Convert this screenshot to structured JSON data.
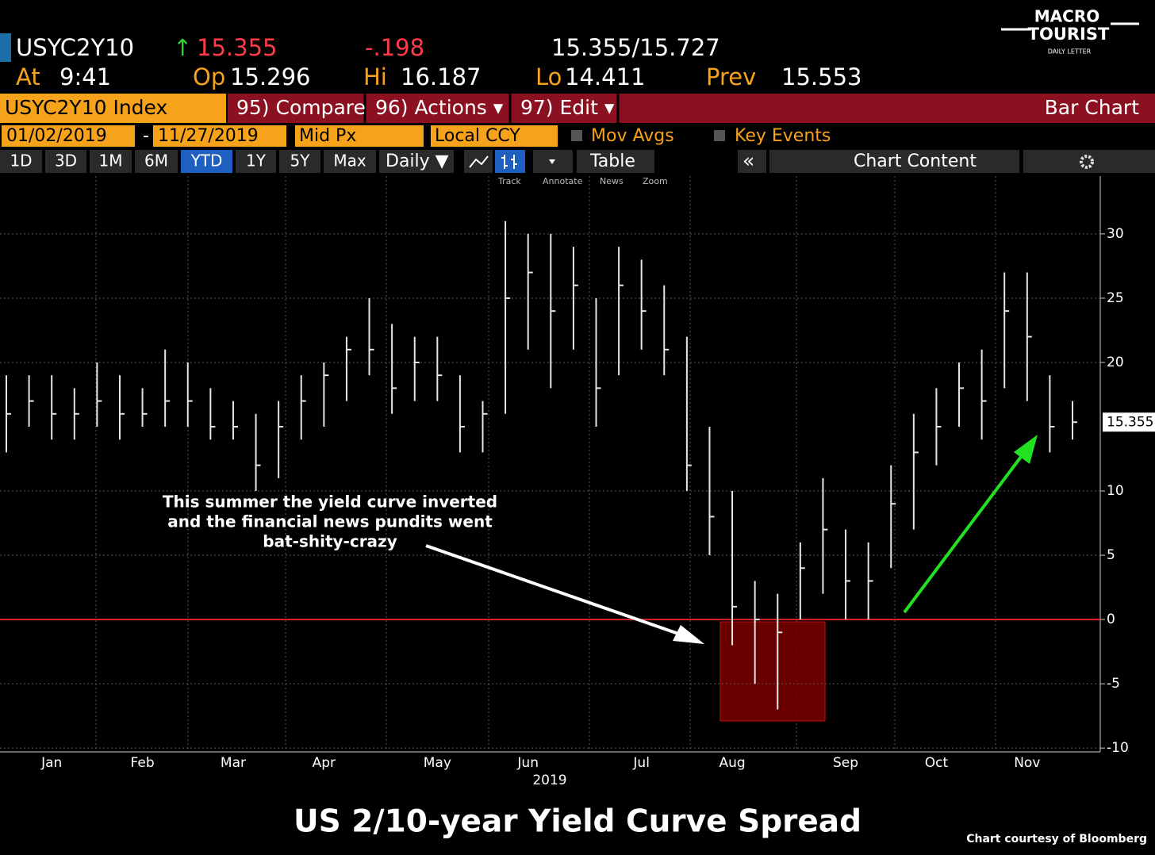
{
  "header": {
    "ticker": "USYC2Y10",
    "arrow": "↑",
    "last": "15.355",
    "change": "-.198",
    "bid_ask": "15.355/15.727",
    "at_label": "At",
    "time": "9:41",
    "open_label": "Op",
    "open": "15.296",
    "high_label": "Hi",
    "high": "16.187",
    "low_label": "Lo",
    "low": "14.411",
    "prev_label": "Prev",
    "prev": "15.553"
  },
  "logo": {
    "line1": "MACRO",
    "line2": "TOURIST",
    "line3": "DAILY LETTER"
  },
  "toolbar": {
    "security": "USYC2Y10 Index",
    "compare": "95) Compare",
    "actions": "96) Actions ▾",
    "edit": "97) Edit ▾",
    "view": "Bar Chart",
    "start": "01/02/2019",
    "dash": "-",
    "end": "11/27/2019",
    "price_field": "Mid Px",
    "currency": "Local CCY",
    "mov_avgs": "Mov Avgs",
    "key_events": "Key Events",
    "periods": [
      "1D",
      "3D",
      "1M",
      "6M",
      "YTD",
      "1Y",
      "5Y",
      "Max"
    ],
    "frequency": "Daily ▼",
    "table": "Table",
    "collapse": "«",
    "chart_content": "Chart Content",
    "tools": [
      "Track",
      "Annotate",
      "News",
      "Zoom"
    ]
  },
  "chart_data": {
    "type": "ohlc",
    "title": "US 2/10-year Yield Curve Spread",
    "x_label": "2019",
    "source": "Chart courtesy of Bloomberg",
    "annotation": [
      "This summer the yield curve inverted",
      "and the financial news pundits went",
      "bat-shity-crazy"
    ],
    "categories": [
      null,
      null,
      "Jan",
      null,
      null,
      null,
      "Feb",
      null,
      null,
      null,
      "Mar",
      null,
      null,
      null,
      "Apr",
      null,
      null,
      null,
      null,
      "May",
      null,
      null,
      null,
      "Jun",
      null,
      null,
      null,
      null,
      "Jul",
      null,
      null,
      null,
      "Aug",
      null,
      null,
      null,
      null,
      "Sep",
      null,
      null,
      null,
      "Oct",
      null,
      null,
      null,
      "Nov",
      null,
      null
    ],
    "high": [
      19,
      19,
      19,
      18,
      20,
      19,
      18,
      21,
      20,
      18,
      17,
      16,
      17,
      19,
      20,
      22,
      25,
      23,
      22,
      22,
      19,
      17,
      31,
      30,
      30,
      29,
      25,
      29,
      28,
      26,
      22,
      15,
      10,
      3,
      2,
      6,
      11,
      7,
      6,
      12,
      16,
      18,
      20,
      21,
      27,
      27,
      19,
      17
    ],
    "low": [
      13,
      15,
      14,
      14,
      15,
      14,
      15,
      15,
      15,
      14,
      14,
      10,
      11,
      14,
      15,
      17,
      19,
      16,
      17,
      17,
      13,
      13,
      16,
      21,
      18,
      21,
      15,
      19,
      21,
      19,
      10,
      5,
      -2,
      -5,
      -7,
      0,
      2,
      0,
      0,
      4,
      7,
      12,
      15,
      14,
      18,
      17,
      13,
      14
    ],
    "close": [
      16,
      17,
      16,
      16,
      17,
      16,
      16,
      17,
      17,
      15,
      15,
      12,
      15,
      17,
      19,
      21,
      21,
      18,
      20,
      19,
      15,
      16,
      25,
      27,
      24,
      26,
      18,
      26,
      24,
      21,
      12,
      8,
      1,
      0,
      -1,
      4,
      7,
      3,
      3,
      9,
      13,
      15,
      18,
      17,
      24,
      22,
      15,
      15.355
    ],
    "color": "#e6e6e6",
    "last_price": 15.355,
    "reference_line": {
      "value": 0,
      "color": "#e0202a"
    },
    "ylim": [
      -10.3,
      34.5
    ],
    "yticks": [
      -10,
      -5,
      0,
      5,
      10,
      20,
      25,
      30
    ],
    "grid": true
  }
}
